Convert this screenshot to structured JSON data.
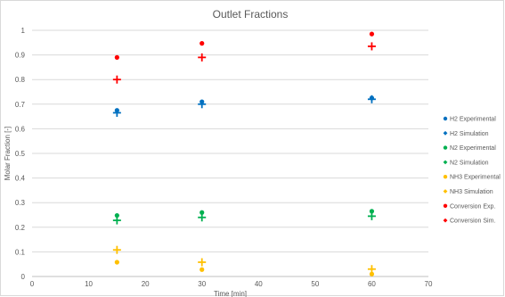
{
  "chart_data": {
    "type": "scatter",
    "title": "Outlet Fractions",
    "xlabel": "Time [min]",
    "ylabel": "Molar Fraction [-]",
    "xlim": [
      0,
      70
    ],
    "ylim": [
      0,
      1
    ],
    "xticks": [
      0,
      10,
      20,
      30,
      40,
      50,
      60,
      70
    ],
    "yticks": [
      0,
      0.1,
      0.2,
      0.3,
      0.4,
      0.5,
      0.6,
      0.7,
      0.8,
      0.9,
      1
    ],
    "grid": "horizontal",
    "legend_position": "right",
    "x": [
      15,
      30,
      60
    ],
    "series": [
      {
        "name": "H2 Experimental",
        "marker": "circle",
        "color": "#0070c0",
        "values": [
          0.675,
          0.71,
          0.725
        ]
      },
      {
        "name": "H2 Simulation",
        "marker": "plus",
        "color": "#0070c0",
        "values": [
          0.665,
          0.7,
          0.72
        ]
      },
      {
        "name": "N2 Experimental",
        "marker": "circle",
        "color": "#00b050",
        "values": [
          0.248,
          0.26,
          0.265
        ]
      },
      {
        "name": "N2 Simulation",
        "marker": "plus",
        "color": "#00b050",
        "values": [
          0.228,
          0.24,
          0.245
        ]
      },
      {
        "name": "NH3 Experimental",
        "marker": "circle",
        "color": "#ffc000",
        "values": [
          0.058,
          0.028,
          0.01
        ]
      },
      {
        "name": "NH3 Simulation",
        "marker": "plus",
        "color": "#ffc000",
        "values": [
          0.108,
          0.058,
          0.03
        ]
      },
      {
        "name": "Conversion Exp.",
        "marker": "circle",
        "color": "#ff0000",
        "values": [
          0.89,
          0.947,
          0.985
        ]
      },
      {
        "name": "Conversion Sim.",
        "marker": "plus",
        "color": "#ff0000",
        "values": [
          0.8,
          0.89,
          0.935
        ]
      }
    ]
  }
}
